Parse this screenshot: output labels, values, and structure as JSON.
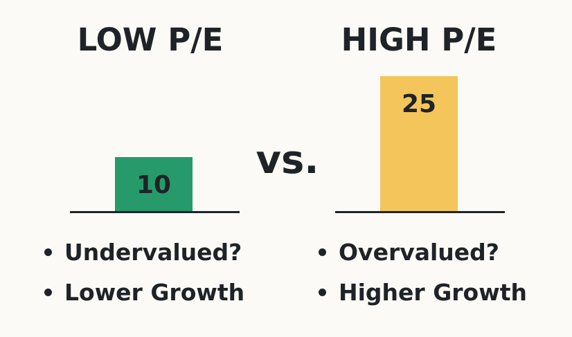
{
  "left_panel": {
    "title": "LOW P/E",
    "bullets": [
      "Undervalued?",
      "Lower Growth"
    ]
  },
  "right_panel": {
    "title": "HIGH P/E",
    "bullets": [
      "Overvalued?",
      "Higher Growth"
    ]
  },
  "vs_label": "vs.",
  "colors": {
    "low": "#269a6b",
    "high": "#f4c55a",
    "ink": "#1f2327",
    "background": "#fbfaf6"
  },
  "chart_data": {
    "type": "bar",
    "categories": [
      "LOW P/E",
      "HIGH P/E"
    ],
    "values": [
      10,
      25
    ],
    "data_labels": [
      "10",
      "25"
    ],
    "ylim": [
      0,
      25
    ],
    "grid": false,
    "legend": "none"
  }
}
